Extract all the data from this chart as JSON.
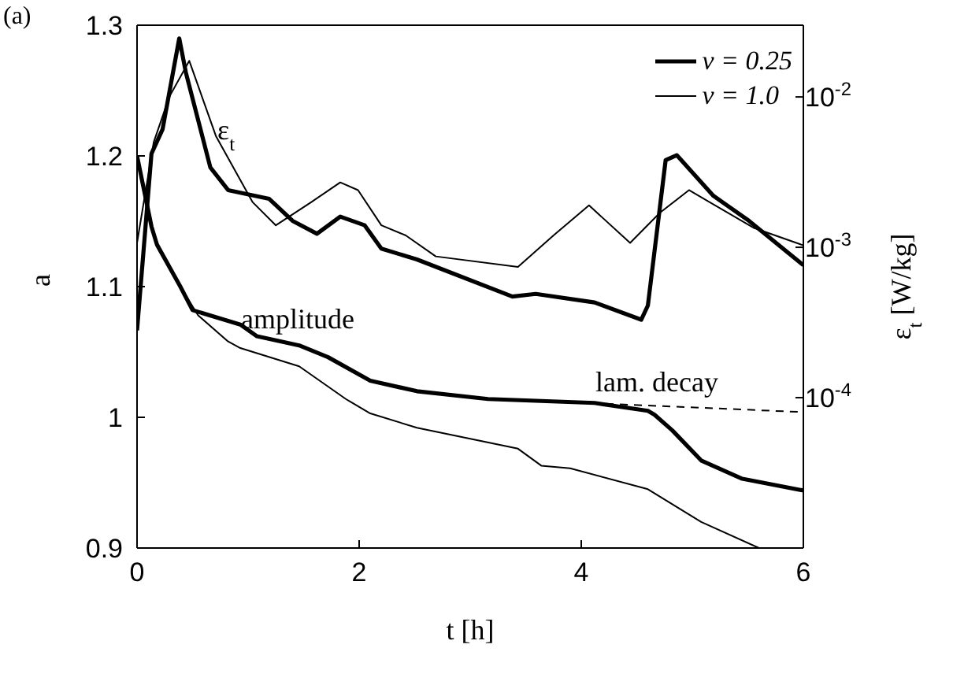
{
  "chart_data": {
    "type": "line",
    "xlabel": "t [h]",
    "ylabel": "a",
    "y2label": "ε$_{t}$ [W/kg]",
    "xlim": [
      0,
      6
    ],
    "xticks": [
      0,
      2,
      4,
      6
    ],
    "ylim": [
      0.9,
      1.3
    ],
    "yticks": [
      0.9,
      1,
      1.1,
      1.2,
      1.3
    ],
    "y2lim": [
      1e-05,
      0.03
    ],
    "y2ticks": [
      {
        "value": 0.0001,
        "label": "10$^{-4}$"
      },
      {
        "value": 0.001,
        "label": "10$^{-3}$"
      },
      {
        "value": 0.01,
        "label": "10$^{-2}$"
      }
    ],
    "log": "y2",
    "legend": "top right",
    "marker": "none",
    "series": [
      {
        "name": "ν = 0.25",
        "color": "#000000",
        "axis": "y2",
        "x": [
          0,
          0.13,
          0.23,
          0.38,
          0.44,
          0.66,
          0.82,
          1.19,
          1.4,
          1.62,
          1.83,
          2.05,
          2.2,
          2.52,
          3.38,
          3.59,
          4.12,
          4.54,
          4.6,
          4.76,
          4.86,
          5.19,
          5.51,
          6
        ],
        "values": [
          0.00028,
          0.0042,
          0.0061,
          0.0245,
          0.0145,
          0.0034,
          0.0024,
          0.0021,
          0.0015,
          0.00123,
          0.0016,
          0.0014,
          0.00098,
          0.00083,
          0.00047,
          0.00049,
          0.00043,
          0.00033,
          0.00041,
          0.0038,
          0.0041,
          0.0022,
          0.0015,
          0.00076
        ]
      },
      {
        "name": "ν = 1.0",
        "color": "#000000",
        "axis": "y2",
        "x": [
          0,
          0.15,
          0.29,
          0.47,
          0.71,
          1.04,
          1.25,
          1.57,
          1.83,
          1.99,
          2.2,
          2.42,
          2.69,
          3.43,
          3.75,
          4.07,
          4.44,
          4.71,
          4.97,
          5.55,
          6
        ],
        "values": [
          0.00107,
          0.005,
          0.01,
          0.0174,
          0.0055,
          0.002,
          0.0014,
          0.002,
          0.0027,
          0.0024,
          0.0014,
          0.0012,
          0.00087,
          0.00074,
          0.0012,
          0.0019,
          0.00107,
          0.0017,
          0.0024,
          0.00135,
          0.00103
        ]
      },
      {
        "color": "#000000",
        "x": [
          0,
          0.13,
          0.18,
          0.39,
          0.5,
          0.93,
          1.08,
          1.46,
          1.72,
          2.1,
          2.52,
          3.16,
          4.12,
          4.6,
          4.66,
          4.82,
          5.08,
          5.45,
          6
        ],
        "values": [
          1.2,
          1.146,
          1.132,
          1.1,
          1.082,
          1.071,
          1.062,
          1.055,
          1.046,
          1.028,
          1.02,
          1.014,
          1.011,
          1.005,
          1.002,
          0.99,
          0.967,
          0.953,
          0.944
        ]
      },
      {
        "color": "#000000",
        "x": [
          0,
          0.13,
          0.18,
          0.39,
          0.55,
          0.82,
          0.93,
          1.46,
          1.88,
          2.1,
          2.52,
          3.43,
          3.64,
          3.9,
          4.6,
          5.08,
          5.6
        ],
        "values": [
          1.2,
          1.146,
          1.132,
          1.1,
          1.078,
          1.058,
          1.053,
          1.039,
          1.014,
          1.003,
          0.992,
          0.976,
          0.963,
          0.961,
          0.945,
          0.92,
          0.9
        ]
      },
      {
        "color": "#000000",
        "line_style": "dashed",
        "x": [
          3.2,
          6
        ],
        "values": [
          1.014,
          1.004
        ]
      }
    ],
    "annotations": [
      "(a)",
      "ε$_{t}$",
      "amplitude",
      "lam.  decay"
    ]
  }
}
